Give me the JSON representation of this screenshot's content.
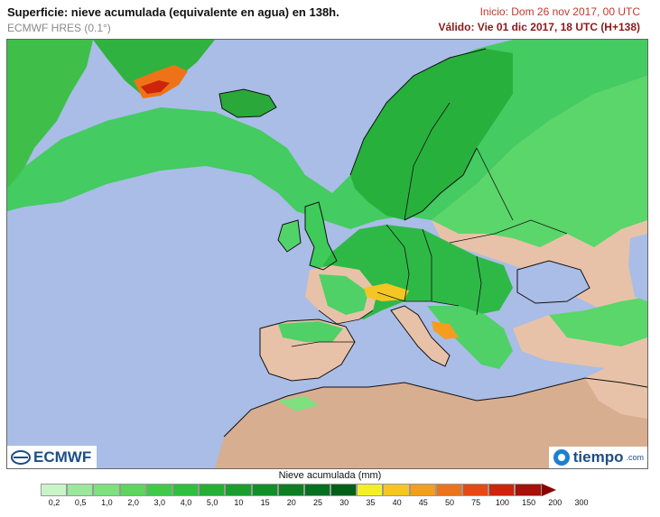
{
  "header": {
    "title": "Superficie: nieve acumulada (equivalente en agua) en 138h.",
    "model": "ECMWF HRES (0.1°)",
    "init": "Inicio: Dom 26 nov 2017, 00 UTC",
    "valid": "Válido: Vie 01 dic 2017, 18 UTC (H+138)"
  },
  "logos": {
    "ecmwf": "ECMWF",
    "tiempo": "tiempo",
    "tiempo_suffix": ".com"
  },
  "legend": {
    "title": "Nieve acumulada (mm)",
    "labels": [
      "0,2",
      "0,5",
      "1,0",
      "2,0",
      "3,0",
      "4,0",
      "5,0",
      "10",
      "15",
      "20",
      "25",
      "30",
      "35",
      "40",
      "45",
      "50",
      "75",
      "100",
      "150",
      "200",
      "300"
    ],
    "colors": [
      "#c8f5c8",
      "#9be89b",
      "#7ee07e",
      "#5cd65c",
      "#3ecb4a",
      "#2ec03f",
      "#22b035",
      "#189f2e",
      "#109028",
      "#0a8022",
      "#05701d",
      "#006018",
      "#f2ef2a",
      "#f5c623",
      "#f49d1e",
      "#ee7318",
      "#e44a12",
      "#cc250c",
      "#aa1005",
      "#8b0000"
    ]
  },
  "map_colors": {
    "sea": "#a9bde6",
    "land": "#e8c2a8",
    "desert": "#d8ae90",
    "border": "#111111"
  }
}
